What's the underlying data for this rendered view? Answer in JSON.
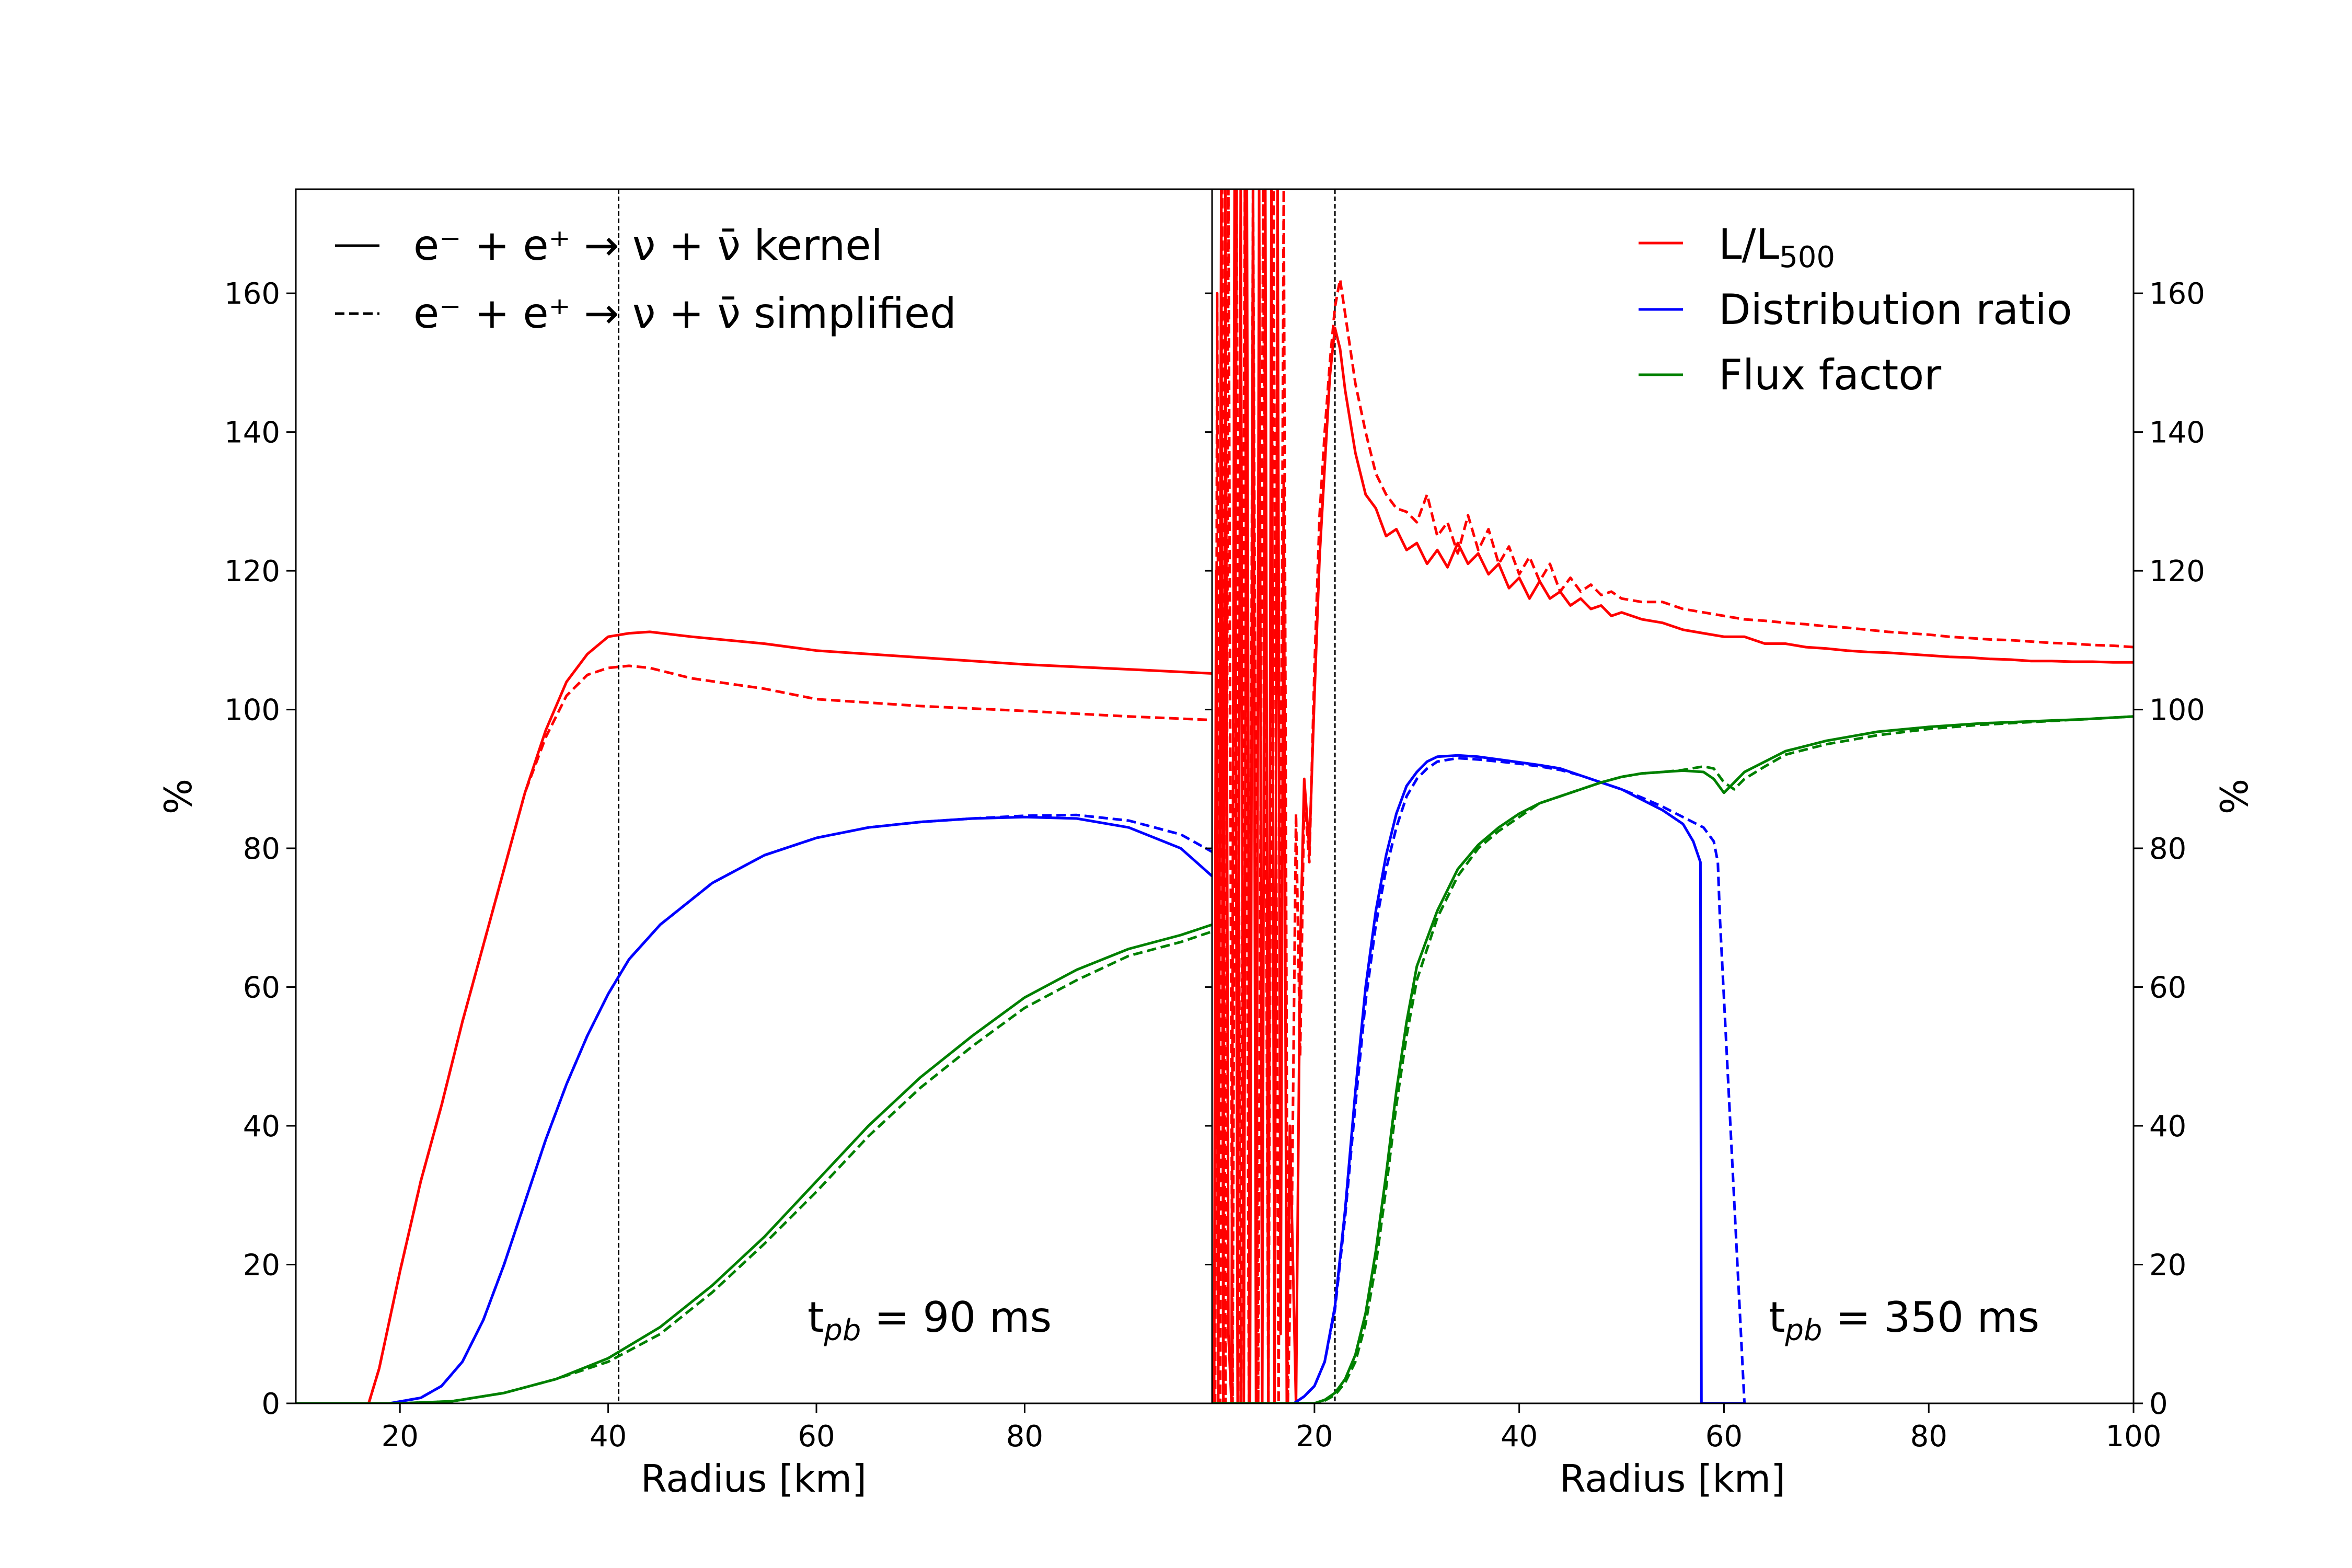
{
  "chart_data": [
    {
      "type": "line",
      "annotation": {
        "base": "t",
        "sub": "pb",
        "rest": " = 90 ms"
      },
      "xlabel": "Radius [km]",
      "ylabel": "%",
      "xlim": [
        10,
        98
      ],
      "ylim": [
        0,
        175
      ],
      "xticks": [
        20,
        40,
        60,
        80
      ],
      "yticks": [
        0,
        20,
        40,
        60,
        80,
        100,
        120,
        140,
        160
      ],
      "vline_x": 41,
      "legend": {
        "placement": "top-left",
        "entries": [
          {
            "style": "solid",
            "label": "e⁻ + e⁺ → ν + ν̄ kernel"
          },
          {
            "style": "dashed",
            "label": "e⁻ + e⁺ → ν + ν̄ simplified"
          }
        ]
      },
      "series": [
        {
          "name": "L/L500",
          "color": "#ff0000",
          "style": "solid",
          "x": [
            10,
            17,
            18,
            20,
            22,
            24,
            26,
            28,
            30,
            32,
            34,
            36,
            38,
            40,
            42,
            44,
            48,
            55,
            60,
            70,
            80,
            90,
            98
          ],
          "y": [
            0,
            0,
            5,
            19,
            32,
            43,
            55,
            66,
            77,
            88,
            97,
            104,
            108,
            110.5,
            111,
            111.2,
            110.5,
            109.5,
            108.5,
            107.5,
            106.5,
            105.8,
            105.2
          ]
        },
        {
          "name": "L/L500",
          "color": "#ff0000",
          "style": "dashed",
          "x": [
            10,
            17,
            18,
            20,
            22,
            24,
            26,
            28,
            30,
            32,
            34,
            36,
            38,
            40,
            42,
            44,
            48,
            55,
            60,
            70,
            80,
            90,
            98
          ],
          "y": [
            0,
            0,
            5,
            19,
            32,
            43,
            55,
            66,
            77,
            88,
            96,
            102,
            105,
            106,
            106.3,
            106,
            104.5,
            103,
            101.5,
            100.5,
            99.8,
            99,
            98.5
          ]
        },
        {
          "name": "Distribution ratio",
          "color": "#0000ff",
          "style": "solid",
          "x": [
            10,
            19,
            22,
            24,
            26,
            28,
            30,
            32,
            34,
            36,
            38,
            40,
            42,
            45,
            50,
            55,
            60,
            65,
            70,
            75,
            80,
            85,
            90,
            95,
            98
          ],
          "y": [
            0,
            0,
            0.8,
            2.5,
            6,
            12,
            20,
            29,
            38,
            46,
            53,
            59,
            64,
            69,
            75,
            79,
            81.5,
            83,
            83.8,
            84.3,
            84.5,
            84.3,
            83,
            80,
            76
          ]
        },
        {
          "name": "Distribution ratio",
          "color": "#0000ff",
          "style": "dashed",
          "x": [
            10,
            19,
            22,
            24,
            26,
            28,
            30,
            32,
            34,
            36,
            38,
            40,
            42,
            45,
            50,
            55,
            60,
            65,
            70,
            75,
            80,
            85,
            90,
            95,
            98
          ],
          "y": [
            0,
            0,
            0.8,
            2.5,
            6,
            12,
            20,
            29,
            38,
            46,
            53,
            59,
            64,
            69,
            75,
            79,
            81.5,
            83,
            83.8,
            84.3,
            84.7,
            84.8,
            84,
            82,
            79.5
          ]
        },
        {
          "name": "Flux factor",
          "color": "#008000",
          "style": "solid",
          "x": [
            10,
            20,
            25,
            30,
            35,
            40,
            45,
            50,
            55,
            60,
            65,
            70,
            75,
            80,
            85,
            90,
            95,
            98
          ],
          "y": [
            0,
            0,
            0.3,
            1.5,
            3.5,
            6.5,
            11,
            17,
            24,
            32,
            40,
            47,
            53,
            58.5,
            62.5,
            65.5,
            67.5,
            69
          ]
        },
        {
          "name": "Flux factor",
          "color": "#008000",
          "style": "dashed",
          "x": [
            10,
            20,
            25,
            30,
            35,
            40,
            45,
            50,
            55,
            60,
            65,
            70,
            75,
            80,
            85,
            90,
            95,
            98
          ],
          "y": [
            0,
            0,
            0.3,
            1.5,
            3.5,
            6,
            10,
            16,
            23,
            30.5,
            38.5,
            45.5,
            51.5,
            57,
            61,
            64.5,
            66.5,
            68
          ]
        }
      ]
    },
    {
      "type": "line",
      "annotation": {
        "base": "t",
        "sub": "pb",
        "rest": " = 350 ms"
      },
      "xlabel": "Radius [km]",
      "ylabel": "%",
      "xlim": [
        10,
        100
      ],
      "ylim": [
        0,
        175
      ],
      "xticks": [
        20,
        40,
        60,
        80,
        100
      ],
      "yticks": [
        0,
        20,
        40,
        60,
        80,
        100,
        120,
        140,
        160
      ],
      "vline_x": 22,
      "legend": {
        "placement": "top-right",
        "entries": [
          {
            "color": "#ff0000",
            "label_base": "L/L",
            "label_sub": "500"
          },
          {
            "color": "#0000ff",
            "label_base": "Distribution ratio",
            "label_sub": ""
          },
          {
            "color": "#008000",
            "label_base": "Flux factor",
            "label_sub": ""
          }
        ]
      },
      "series": [
        {
          "name": "L/L500",
          "color": "#ff0000",
          "style": "solid",
          "x": [
            10.2,
            10.4,
            10.6,
            10.9,
            11.1,
            11.3,
            11.6,
            11.9,
            12.2,
            12.5,
            12.8,
            13.1,
            13.4,
            13.7,
            14.0,
            14.3,
            14.6,
            14.9,
            15.2,
            15.5,
            15.8,
            16.1,
            16.4,
            16.7,
            17.0,
            17.3,
            17.6,
            17.9,
            18.2,
            18.6,
            19.0,
            19.5,
            20.0,
            20.5,
            21.0,
            21.5,
            22.0,
            22.5,
            23,
            24,
            25,
            26,
            27,
            28,
            29,
            30,
            31,
            32,
            33,
            34,
            35,
            36,
            37,
            38,
            39,
            40,
            41,
            42,
            43,
            44,
            45,
            46,
            47,
            48,
            49,
            50,
            52,
            54,
            56,
            58,
            60,
            62,
            64,
            66,
            68,
            70,
            72,
            74,
            76,
            78,
            80,
            82,
            84,
            86,
            88,
            90,
            92,
            94,
            96,
            98,
            100
          ],
          "y": [
            0,
            120,
            0,
            175,
            0,
            175,
            10,
            0,
            175,
            0,
            175,
            0,
            175,
            0,
            175,
            0,
            175,
            0,
            175,
            0,
            175,
            0,
            175,
            10,
            133,
            0,
            40,
            20,
            0,
            65,
            90,
            80,
            102,
            122,
            135,
            148,
            155,
            152,
            146,
            137,
            131,
            129,
            125,
            126,
            123,
            124,
            121,
            123,
            120.5,
            124,
            121,
            122.5,
            119.5,
            121,
            117.5,
            119,
            116,
            118.5,
            116,
            117,
            115,
            116,
            114.5,
            115,
            113.5,
            114,
            113,
            112.5,
            111.5,
            111,
            110.5,
            110.5,
            109.5,
            109.5,
            109,
            108.8,
            108.5,
            108.3,
            108.2,
            108,
            107.8,
            107.6,
            107.5,
            107.3,
            107.2,
            107,
            107,
            106.9,
            106.9,
            106.8,
            106.8
          ]
        },
        {
          "name": "L/L500",
          "color": "#ff0000",
          "style": "dashed",
          "x": [
            10.3,
            10.5,
            10.8,
            11.0,
            11.3,
            11.6,
            12.0,
            12.4,
            12.8,
            13.2,
            13.6,
            14.0,
            14.5,
            15.0,
            15.5,
            16.0,
            16.5,
            17.0,
            17.4,
            17.8,
            18.2,
            18.6,
            19.0,
            19.5,
            20.0,
            20.5,
            21.0,
            21.5,
            22.0,
            22.5,
            23,
            24,
            25,
            26,
            27,
            28,
            29,
            30,
            31,
            32,
            33,
            34,
            35,
            36,
            37,
            38,
            39,
            40,
            41,
            42,
            43,
            44,
            45,
            46,
            47,
            48,
            49,
            50,
            52,
            54,
            56,
            58,
            60,
            62,
            64,
            66,
            68,
            70,
            72,
            74,
            76,
            78,
            80,
            82,
            84,
            86,
            88,
            90,
            92,
            94,
            96,
            98,
            100
          ],
          "y": [
            0,
            160,
            0,
            175,
            0,
            175,
            0,
            175,
            0,
            175,
            0,
            175,
            0,
            175,
            0,
            175,
            0,
            175,
            0,
            28,
            85,
            50,
            88,
            78,
            106,
            128,
            140,
            150,
            158,
            162,
            157,
            147,
            140,
            134,
            131,
            129,
            128.5,
            127,
            131,
            125,
            127,
            122.5,
            128,
            123,
            126,
            121,
            123.5,
            119.5,
            122,
            118.5,
            121,
            117,
            119,
            117,
            118,
            116.5,
            117,
            116,
            115.5,
            115.5,
            114.5,
            114,
            113.5,
            113,
            112.8,
            112.5,
            112.3,
            112,
            111.8,
            111.5,
            111.2,
            111,
            110.8,
            110.5,
            110.3,
            110.1,
            110,
            109.8,
            109.6,
            109.5,
            109.3,
            109.2,
            109
          ]
        },
        {
          "name": "Distribution ratio",
          "color": "#0000ff",
          "style": "solid",
          "x": [
            10,
            18,
            19,
            20,
            21,
            22,
            23,
            24,
            25,
            26,
            27,
            28,
            29,
            30,
            31,
            32,
            34,
            36,
            38,
            40,
            42,
            44,
            46,
            48,
            50,
            52,
            54,
            56,
            57,
            57.7,
            57.8,
            58,
            60,
            62
          ],
          "y": [
            0,
            0,
            1,
            2.5,
            6,
            14,
            28,
            45,
            60,
            71,
            79,
            85,
            89,
            91,
            92.5,
            93.2,
            93.4,
            93.2,
            92.8,
            92.4,
            92,
            91.5,
            90.5,
            89.5,
            88.5,
            87,
            85.5,
            83.5,
            81,
            78,
            0,
            0,
            0,
            0
          ]
        },
        {
          "name": "Distribution ratio",
          "color": "#0000ff",
          "style": "dashed",
          "x": [
            10,
            18,
            19,
            20,
            21,
            22,
            23,
            24,
            25,
            26,
            27,
            28,
            29,
            30,
            31,
            32,
            34,
            36,
            38,
            40,
            42,
            44,
            46,
            48,
            50,
            52,
            54,
            56,
            58,
            59,
            59.4,
            59.6,
            62
          ],
          "y": [
            0,
            0,
            1,
            2.5,
            6,
            13.5,
            27,
            43,
            58,
            69,
            77,
            83,
            87.5,
            90,
            91.5,
            92.5,
            93,
            92.8,
            92.5,
            92.2,
            91.8,
            91.3,
            90.5,
            89.5,
            88.5,
            87.3,
            86,
            84.5,
            83,
            81,
            78,
            70,
            0
          ]
        },
        {
          "name": "Flux factor",
          "color": "#008000",
          "style": "solid",
          "x": [
            10,
            20,
            21,
            22,
            23,
            24,
            25,
            26,
            27,
            28,
            29,
            30,
            32,
            34,
            36,
            38,
            40,
            42,
            44,
            46,
            48,
            50,
            52,
            54,
            56,
            58,
            59,
            60,
            61,
            62,
            64,
            66,
            70,
            75,
            80,
            85,
            90,
            95,
            100
          ],
          "y": [
            0,
            0,
            0.5,
            1.5,
            3.5,
            7,
            13,
            22,
            33,
            45,
            55,
            63,
            71,
            77,
            80.5,
            83,
            85,
            86.5,
            87.5,
            88.5,
            89.5,
            90.3,
            90.8,
            91,
            91.2,
            91,
            90,
            88,
            89.5,
            91,
            92.5,
            94,
            95.5,
            96.8,
            97.5,
            98,
            98.3,
            98.6,
            99
          ]
        },
        {
          "name": "Flux factor",
          "color": "#008000",
          "style": "dashed",
          "x": [
            10,
            20,
            21,
            22,
            23,
            24,
            25,
            26,
            27,
            28,
            29,
            30,
            32,
            34,
            36,
            38,
            40,
            42,
            44,
            46,
            48,
            50,
            52,
            54,
            56,
            58,
            59,
            60,
            61,
            62,
            64,
            66,
            70,
            75,
            80,
            85,
            90,
            95,
            100
          ],
          "y": [
            0,
            0,
            0.4,
            1.2,
            3,
            6,
            11.5,
            20,
            31,
            43,
            53,
            61,
            70,
            76,
            80,
            82.5,
            84.5,
            86.5,
            87.5,
            88.5,
            89.5,
            90.3,
            90.8,
            91,
            91.3,
            91.8,
            91.5,
            89.5,
            88.5,
            90,
            91.8,
            93.5,
            95,
            96.3,
            97.2,
            97.8,
            98.2,
            98.6,
            99
          ]
        }
      ]
    }
  ]
}
